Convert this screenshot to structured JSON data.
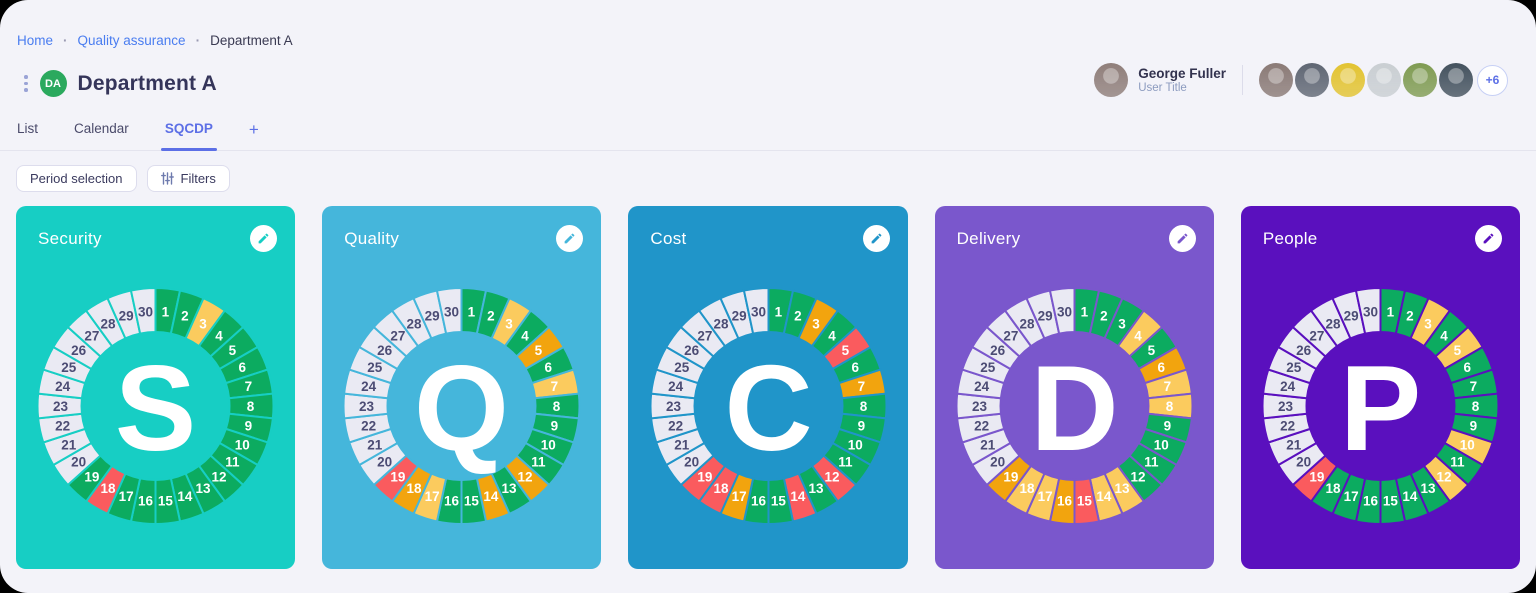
{
  "breadcrumb": {
    "separator": "·",
    "items": [
      {
        "label": "Home"
      },
      {
        "label": "Quality assurance"
      },
      {
        "label": "Department A"
      }
    ]
  },
  "page": {
    "title": "Department A",
    "badge": "DA"
  },
  "tabs": [
    {
      "label": "List"
    },
    {
      "label": "Calendar"
    },
    {
      "label": "SQCDP"
    },
    {
      "label": "+"
    }
  ],
  "toolbar": {
    "period_button": "Period selection",
    "filters_button": "Filters"
  },
  "user": {
    "name": "George Fuller",
    "title": "User Title",
    "more_count": "+6",
    "avatar_color": "#8f7e7a",
    "team_avatar_colors": [
      "#8a7a76",
      "#5f6673",
      "#e2c331",
      "#c9ced2",
      "#7f9b52",
      "#44525e"
    ]
  },
  "status_colors": {
    "green": "#0cab60",
    "yellow": "#fbcb5e",
    "orange": "#f2a40e",
    "red": "#fa5b5e",
    "empty": "#eaeaf3"
  },
  "label_colors": {
    "filled": "#ffffff",
    "empty": "#4c4c74"
  },
  "chart_data": [
    {
      "type": "donut-status",
      "title": "Security",
      "letter": "S",
      "card_color": "#17cec4",
      "days": 30,
      "statuses": [
        "green",
        "green",
        "yellow",
        "green",
        "green",
        "green",
        "green",
        "green",
        "green",
        "green",
        "green",
        "green",
        "green",
        "green",
        "green",
        "green",
        "green",
        "red",
        "green",
        "empty",
        "empty",
        "empty",
        "empty",
        "empty",
        "empty",
        "empty",
        "empty",
        "empty",
        "empty",
        "empty"
      ]
    },
    {
      "type": "donut-status",
      "title": "Quality",
      "letter": "Q",
      "card_color": "#45b6db",
      "days": 30,
      "statuses": [
        "green",
        "green",
        "yellow",
        "green",
        "orange",
        "green",
        "yellow",
        "green",
        "green",
        "green",
        "green",
        "orange",
        "green",
        "orange",
        "green",
        "green",
        "yellow",
        "orange",
        "red",
        "empty",
        "empty",
        "empty",
        "empty",
        "empty",
        "empty",
        "empty",
        "empty",
        "empty",
        "empty",
        "empty"
      ]
    },
    {
      "type": "donut-status",
      "title": "Cost",
      "letter": "C",
      "card_color": "#2095c9",
      "days": 30,
      "statuses": [
        "green",
        "green",
        "orange",
        "green",
        "red",
        "green",
        "orange",
        "green",
        "green",
        "green",
        "green",
        "red",
        "green",
        "red",
        "green",
        "green",
        "orange",
        "red",
        "red",
        "empty",
        "empty",
        "empty",
        "empty",
        "empty",
        "empty",
        "empty",
        "empty",
        "empty",
        "empty",
        "empty"
      ]
    },
    {
      "type": "donut-status",
      "title": "Delivery",
      "letter": "D",
      "card_color": "#7a57cc",
      "days": 30,
      "statuses": [
        "green",
        "green",
        "green",
        "yellow",
        "green",
        "orange",
        "yellow",
        "yellow",
        "green",
        "green",
        "green",
        "green",
        "yellow",
        "yellow",
        "red",
        "orange",
        "yellow",
        "yellow",
        "orange",
        "empty",
        "empty",
        "empty",
        "empty",
        "empty",
        "empty",
        "empty",
        "empty",
        "empty",
        "empty",
        "empty"
      ]
    },
    {
      "type": "donut-status",
      "title": "People",
      "letter": "P",
      "card_color": "#5a10be",
      "days": 30,
      "statuses": [
        "green",
        "green",
        "yellow",
        "green",
        "yellow",
        "green",
        "green",
        "green",
        "green",
        "yellow",
        "green",
        "yellow",
        "green",
        "green",
        "green",
        "green",
        "green",
        "green",
        "red",
        "empty",
        "empty",
        "empty",
        "empty",
        "empty",
        "empty",
        "empty",
        "empty",
        "empty",
        "empty",
        "empty"
      ]
    }
  ]
}
